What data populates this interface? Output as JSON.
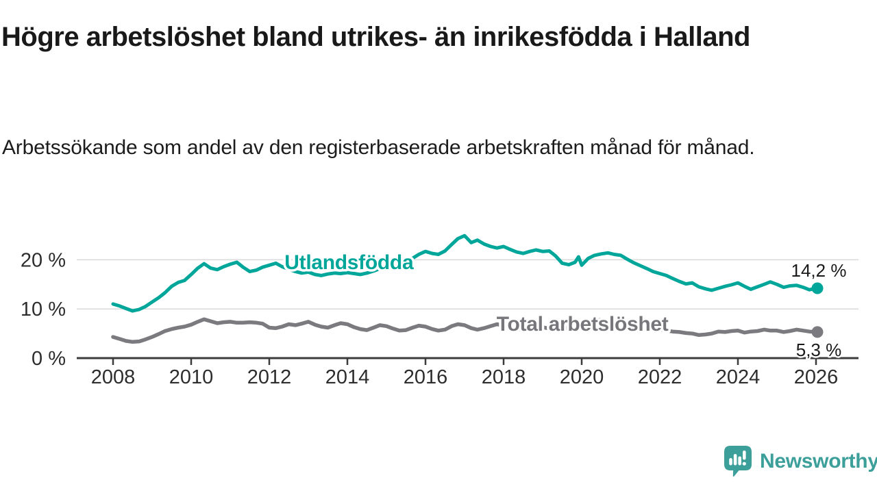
{
  "title": "Högre arbetslöshet bland utrikes- än inrikesfödda i Halland",
  "subtitle": "Arbetssökande som andel av den registerbaserade arbetskraften månad för månad.",
  "branding": {
    "logo_text": "Newsworthy",
    "logo_color": "#3d9f9a",
    "logo_icon": "bar-chart-speech-bubble-icon"
  },
  "colors": {
    "accent_teal": "#00a69a",
    "series_gray": "#7b7b7f",
    "axis": "#3b3b3b",
    "gridline": "#d9d9d9",
    "tick_text": "#2d2d2d",
    "value_text": "#1a1a1a"
  },
  "chart_data": {
    "type": "line",
    "title": "Högre arbetslöshet bland utrikes- än inrikesfödda i Halland",
    "subtitle": "Arbetssökande som andel av den registerbaserade arbetskraften månad för månad.",
    "xlabel": "",
    "ylabel": "",
    "grid": "horizontal",
    "legend_position": "inline-labels",
    "x_axis": {
      "range_years": [
        2007.07,
        2027.09
      ],
      "ticks": [
        {
          "value": 2008,
          "label": "2008"
        },
        {
          "value": 2010,
          "label": "2010"
        },
        {
          "value": 2012,
          "label": "2012"
        },
        {
          "value": 2014,
          "label": "2014"
        },
        {
          "value": 2016,
          "label": "2016"
        },
        {
          "value": 2018,
          "label": "2018"
        },
        {
          "value": 2020,
          "label": "2020"
        },
        {
          "value": 2022,
          "label": "2022"
        },
        {
          "value": 2024,
          "label": "2024"
        },
        {
          "value": 2026,
          "label": "2026"
        }
      ]
    },
    "y_axis": {
      "range": [
        0,
        27
      ],
      "unit": "%",
      "ticks": [
        {
          "value": 0,
          "label": "0 %"
        },
        {
          "value": 10,
          "label": "10 %"
        },
        {
          "value": 20,
          "label": "20 %"
        }
      ]
    },
    "series": [
      {
        "name": "Total arbetslöshet",
        "color": "#7b7b7f",
        "label_color": "#77777b",
        "end_label": "5,3 %",
        "end_value": 5.3,
        "label_anchor": {
          "x": 2020.02,
          "y": 5.55
        },
        "points": [
          [
            2008.0,
            4.3
          ],
          [
            2008.17,
            3.9
          ],
          [
            2008.33,
            3.5
          ],
          [
            2008.5,
            3.3
          ],
          [
            2008.67,
            3.4
          ],
          [
            2008.83,
            3.8
          ],
          [
            2009.0,
            4.3
          ],
          [
            2009.17,
            4.9
          ],
          [
            2009.33,
            5.5
          ],
          [
            2009.5,
            5.9
          ],
          [
            2009.67,
            6.2
          ],
          [
            2009.83,
            6.4
          ],
          [
            2010.0,
            6.8
          ],
          [
            2010.17,
            7.4
          ],
          [
            2010.33,
            7.9
          ],
          [
            2010.5,
            7.5
          ],
          [
            2010.67,
            7.1
          ],
          [
            2010.83,
            7.3
          ],
          [
            2011.0,
            7.4
          ],
          [
            2011.17,
            7.2
          ],
          [
            2011.33,
            7.2
          ],
          [
            2011.5,
            7.3
          ],
          [
            2011.67,
            7.2
          ],
          [
            2011.83,
            7.0
          ],
          [
            2012.0,
            6.2
          ],
          [
            2012.17,
            6.1
          ],
          [
            2012.33,
            6.4
          ],
          [
            2012.5,
            6.9
          ],
          [
            2012.67,
            6.7
          ],
          [
            2012.83,
            7.0
          ],
          [
            2013.0,
            7.4
          ],
          [
            2013.17,
            6.8
          ],
          [
            2013.33,
            6.4
          ],
          [
            2013.5,
            6.2
          ],
          [
            2013.67,
            6.7
          ],
          [
            2013.83,
            7.1
          ],
          [
            2014.0,
            6.9
          ],
          [
            2014.17,
            6.3
          ],
          [
            2014.33,
            5.9
          ],
          [
            2014.5,
            5.7
          ],
          [
            2014.67,
            6.2
          ],
          [
            2014.83,
            6.7
          ],
          [
            2015.0,
            6.5
          ],
          [
            2015.17,
            6.0
          ],
          [
            2015.33,
            5.6
          ],
          [
            2015.5,
            5.7
          ],
          [
            2015.67,
            6.2
          ],
          [
            2015.83,
            6.6
          ],
          [
            2016.0,
            6.4
          ],
          [
            2016.17,
            5.9
          ],
          [
            2016.33,
            5.6
          ],
          [
            2016.5,
            5.8
          ],
          [
            2016.67,
            6.5
          ],
          [
            2016.83,
            6.9
          ],
          [
            2017.0,
            6.7
          ],
          [
            2017.17,
            6.1
          ],
          [
            2017.33,
            5.8
          ],
          [
            2017.5,
            6.1
          ],
          [
            2017.67,
            6.5
          ],
          [
            2017.83,
            6.9
          ],
          [
            2018.0,
            6.6
          ],
          [
            2018.17,
            6.2
          ],
          [
            2018.33,
            5.9
          ],
          [
            2018.5,
            5.8
          ],
          [
            2018.67,
            6.1
          ],
          [
            2018.83,
            6.4
          ],
          [
            2019.0,
            6.3
          ],
          [
            2019.17,
            6.0
          ],
          [
            2019.33,
            5.8
          ],
          [
            2019.5,
            5.9
          ],
          [
            2019.67,
            6.2
          ],
          [
            2019.83,
            6.4
          ],
          [
            2020.0,
            6.6
          ],
          [
            2020.17,
            7.2
          ],
          [
            2020.33,
            7.7
          ],
          [
            2020.5,
            7.8
          ],
          [
            2020.67,
            7.6
          ],
          [
            2020.83,
            7.4
          ],
          [
            2021.0,
            7.3
          ],
          [
            2021.17,
            7.0
          ],
          [
            2021.33,
            6.7
          ],
          [
            2021.5,
            6.4
          ],
          [
            2021.67,
            6.2
          ],
          [
            2021.83,
            6.0
          ],
          [
            2022.0,
            5.8
          ],
          [
            2022.17,
            5.6
          ],
          [
            2022.33,
            5.4
          ],
          [
            2022.5,
            5.3
          ],
          [
            2022.67,
            5.1
          ],
          [
            2022.83,
            5.0
          ],
          [
            2023.0,
            4.7
          ],
          [
            2023.17,
            4.8
          ],
          [
            2023.33,
            5.0
          ],
          [
            2023.5,
            5.4
          ],
          [
            2023.67,
            5.3
          ],
          [
            2023.83,
            5.5
          ],
          [
            2024.0,
            5.6
          ],
          [
            2024.17,
            5.2
          ],
          [
            2024.33,
            5.4
          ],
          [
            2024.5,
            5.5
          ],
          [
            2024.67,
            5.8
          ],
          [
            2024.83,
            5.6
          ],
          [
            2025.0,
            5.6
          ],
          [
            2025.17,
            5.3
          ],
          [
            2025.33,
            5.5
          ],
          [
            2025.5,
            5.8
          ],
          [
            2025.67,
            5.6
          ],
          [
            2025.83,
            5.4
          ],
          [
            2026.0,
            5.3
          ]
        ]
      },
      {
        "name": "Utlandsfödda",
        "color": "#00a69a",
        "label_color": "#00a69a",
        "end_label": "14,2 %",
        "end_value": 14.2,
        "label_anchor": {
          "x": 2014.04,
          "y": 18.1
        },
        "points": [
          [
            2008.0,
            11.0
          ],
          [
            2008.17,
            10.6
          ],
          [
            2008.33,
            10.1
          ],
          [
            2008.5,
            9.6
          ],
          [
            2008.67,
            9.9
          ],
          [
            2008.83,
            10.5
          ],
          [
            2009.0,
            11.4
          ],
          [
            2009.17,
            12.3
          ],
          [
            2009.33,
            13.3
          ],
          [
            2009.5,
            14.6
          ],
          [
            2009.67,
            15.4
          ],
          [
            2009.83,
            15.8
          ],
          [
            2010.0,
            17.0
          ],
          [
            2010.17,
            18.3
          ],
          [
            2010.33,
            19.2
          ],
          [
            2010.5,
            18.3
          ],
          [
            2010.67,
            18.0
          ],
          [
            2010.83,
            18.6
          ],
          [
            2011.0,
            19.1
          ],
          [
            2011.17,
            19.5
          ],
          [
            2011.33,
            18.5
          ],
          [
            2011.5,
            17.6
          ],
          [
            2011.67,
            17.9
          ],
          [
            2011.83,
            18.5
          ],
          [
            2012.0,
            18.9
          ],
          [
            2012.17,
            19.3
          ],
          [
            2012.33,
            18.6
          ],
          [
            2012.5,
            18.1
          ],
          [
            2012.67,
            17.6
          ],
          [
            2012.83,
            17.3
          ],
          [
            2013.0,
            17.5
          ],
          [
            2013.17,
            17.0
          ],
          [
            2013.33,
            16.8
          ],
          [
            2013.5,
            17.1
          ],
          [
            2013.67,
            17.3
          ],
          [
            2013.83,
            17.2
          ],
          [
            2014.0,
            17.4
          ],
          [
            2014.17,
            17.2
          ],
          [
            2014.33,
            17.0
          ],
          [
            2014.5,
            17.3
          ],
          [
            2014.67,
            17.7
          ],
          [
            2014.83,
            18.2
          ],
          [
            2015.0,
            18.5
          ],
          [
            2015.17,
            18.8
          ],
          [
            2015.33,
            19.2
          ],
          [
            2015.5,
            19.7
          ],
          [
            2015.67,
            20.3
          ],
          [
            2015.83,
            21.1
          ],
          [
            2016.0,
            21.7
          ],
          [
            2016.17,
            21.3
          ],
          [
            2016.33,
            21.1
          ],
          [
            2016.5,
            21.8
          ],
          [
            2016.67,
            23.1
          ],
          [
            2016.83,
            24.3
          ],
          [
            2017.0,
            24.9
          ],
          [
            2017.17,
            23.5
          ],
          [
            2017.33,
            24.0
          ],
          [
            2017.5,
            23.2
          ],
          [
            2017.67,
            22.7
          ],
          [
            2017.83,
            22.4
          ],
          [
            2018.0,
            22.7
          ],
          [
            2018.17,
            22.1
          ],
          [
            2018.33,
            21.6
          ],
          [
            2018.5,
            21.3
          ],
          [
            2018.67,
            21.7
          ],
          [
            2018.83,
            22.0
          ],
          [
            2019.0,
            21.7
          ],
          [
            2019.17,
            21.8
          ],
          [
            2019.33,
            20.8
          ],
          [
            2019.5,
            19.3
          ],
          [
            2019.67,
            19.0
          ],
          [
            2019.83,
            19.5
          ],
          [
            2019.92,
            20.6
          ],
          [
            2020.0,
            18.9
          ],
          [
            2020.17,
            20.3
          ],
          [
            2020.33,
            20.9
          ],
          [
            2020.5,
            21.2
          ],
          [
            2020.67,
            21.4
          ],
          [
            2020.83,
            21.1
          ],
          [
            2021.0,
            20.9
          ],
          [
            2021.17,
            20.1
          ],
          [
            2021.33,
            19.4
          ],
          [
            2021.5,
            18.8
          ],
          [
            2021.67,
            18.2
          ],
          [
            2021.83,
            17.6
          ],
          [
            2022.0,
            17.2
          ],
          [
            2022.17,
            16.8
          ],
          [
            2022.33,
            16.2
          ],
          [
            2022.5,
            15.6
          ],
          [
            2022.67,
            15.1
          ],
          [
            2022.83,
            15.3
          ],
          [
            2023.0,
            14.5
          ],
          [
            2023.17,
            14.1
          ],
          [
            2023.33,
            13.8
          ],
          [
            2023.5,
            14.2
          ],
          [
            2023.67,
            14.6
          ],
          [
            2023.83,
            14.9
          ],
          [
            2024.0,
            15.3
          ],
          [
            2024.17,
            14.6
          ],
          [
            2024.33,
            14.0
          ],
          [
            2024.5,
            14.5
          ],
          [
            2024.67,
            15.0
          ],
          [
            2024.83,
            15.5
          ],
          [
            2025.0,
            15.0
          ],
          [
            2025.17,
            14.4
          ],
          [
            2025.33,
            14.7
          ],
          [
            2025.5,
            14.8
          ],
          [
            2025.67,
            14.4
          ],
          [
            2025.83,
            13.9
          ],
          [
            2026.0,
            14.2
          ]
        ]
      }
    ]
  }
}
